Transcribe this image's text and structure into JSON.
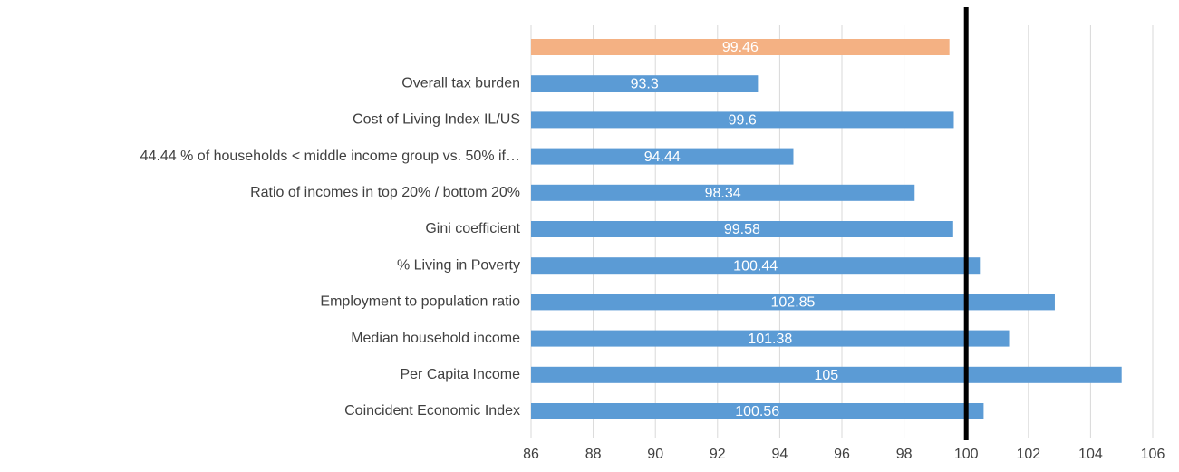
{
  "chart_data": {
    "type": "bar",
    "orientation": "horizontal",
    "categories": [
      null,
      "Overall tax burden",
      "Cost of Living Index IL/US",
      "44.44 % of households < middle income group vs. 50%  if…",
      "Ratio of incomes in top 20% / bottom 20%",
      "Gini coefficient",
      "% Living in Poverty",
      "Employment to population ratio",
      "Median household income",
      "Per Capita Income",
      "Coincident Economic Index"
    ],
    "values": [
      99.46,
      93.3,
      99.6,
      94.44,
      98.34,
      99.58,
      100.44,
      102.85,
      101.38,
      105,
      100.56
    ],
    "colors": [
      "#f4b183",
      "#5b9bd5",
      "#5b9bd5",
      "#5b9bd5",
      "#5b9bd5",
      "#5b9bd5",
      "#5b9bd5",
      "#5b9bd5",
      "#5b9bd5",
      "#5b9bd5",
      "#5b9bd5"
    ],
    "xlim": [
      86,
      106
    ],
    "xticks": [
      86,
      88,
      90,
      92,
      94,
      96,
      98,
      100,
      102,
      104,
      106
    ],
    "grid": true,
    "reference_line": 100
  }
}
